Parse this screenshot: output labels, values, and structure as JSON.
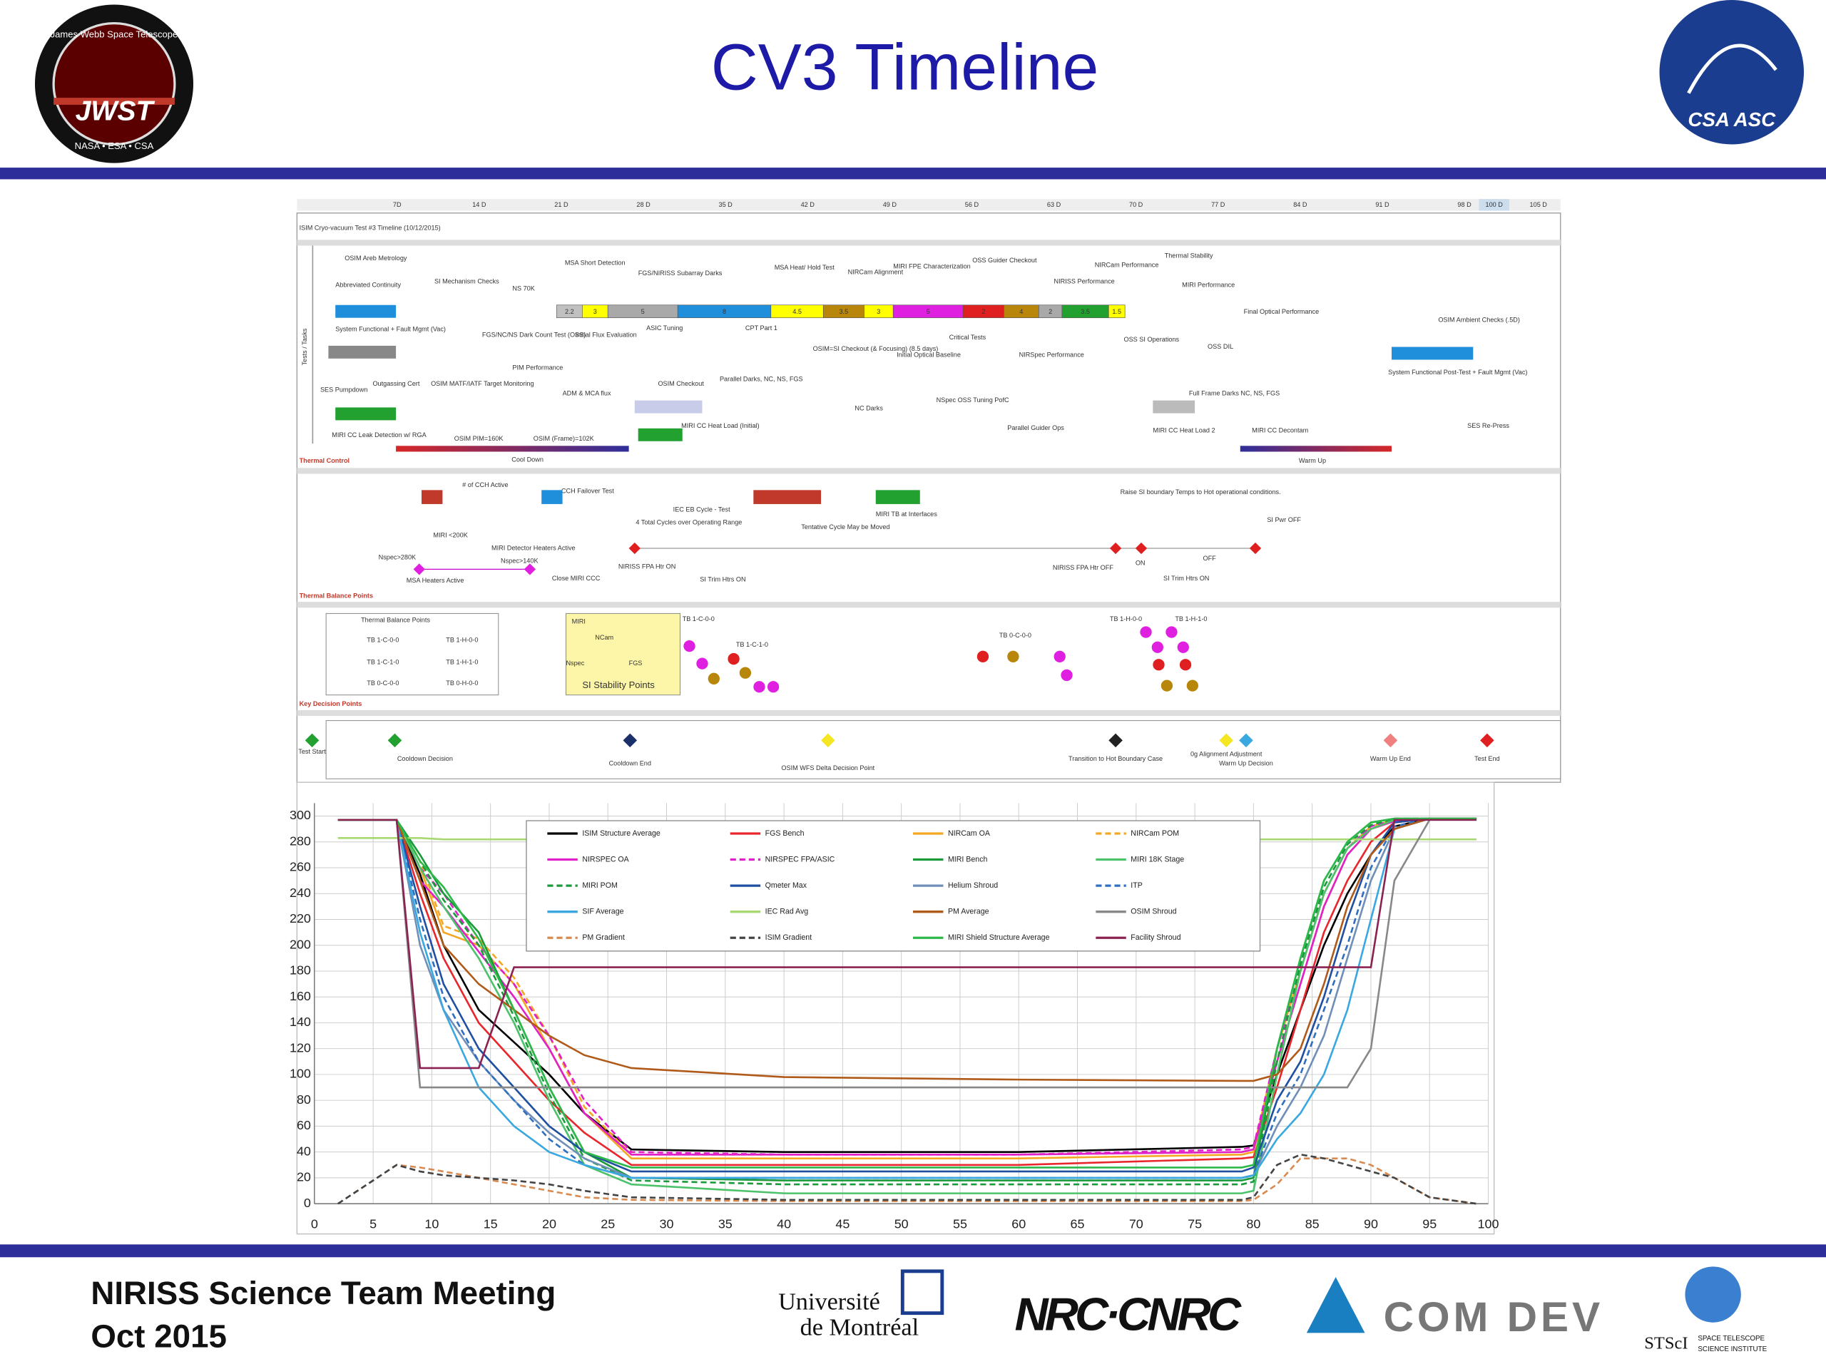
{
  "header": {
    "title": "CV3 Timeline",
    "jwst_logo": {
      "ring": "James Webb Space Telescope",
      "name": "JWST",
      "agencies": "NASA • ESA • CSA"
    },
    "csa_logo": "CSA ASC"
  },
  "timeline": {
    "title": "ISIM Cryo-vacuum Test #3 Timeline (10/12/2015)",
    "days": [
      "7D",
      "14 D",
      "21 D",
      "28 D",
      "35 D",
      "42 D",
      "49 D",
      "56 D",
      "63 D",
      "70 D",
      "77 D",
      "84 D",
      "91 D",
      "98 D",
      "100 D",
      "105 D"
    ],
    "sections": [
      "Tests / Tasks",
      "Thermal Control",
      "Thermal Balance Points",
      "Key Decision Points"
    ],
    "phases": [
      "Cool Down",
      "Warm Up"
    ],
    "bar": [
      {
        "label": "2.2",
        "color": "#c0c0c0"
      },
      {
        "label": "3",
        "color": "#ffff00"
      },
      {
        "label": "5",
        "color": "#a9a9a9"
      },
      {
        "label": "8",
        "color": "#1f8fdc"
      },
      {
        "label": "4.5",
        "color": "#ffff00"
      },
      {
        "label": "3.5",
        "color": "#b8860b"
      },
      {
        "label": "3",
        "color": "#ffff00"
      },
      {
        "label": "5",
        "color": "#e020e0"
      },
      {
        "label": "2",
        "color": "#e02020"
      },
      {
        "label": "4",
        "color": "#b8860b"
      },
      {
        "label": "2",
        "color": "#a9a9a9"
      },
      {
        "label": "3.5",
        "color": "#22a030"
      },
      {
        "label": "1.5",
        "color": "#ffff00"
      }
    ],
    "tasks": [
      "OSIM Areb Metrology",
      "Abbreviated Continuity",
      "SI Mechanism Checks",
      "NS 70K",
      "MSA Short Detection",
      "FGS/NIRISS Subarray Darks",
      "MSA Heat/ Hold Test",
      "NIRCam Alignment",
      "MIRI FPE Characterization",
      "OSS Guider Checkout",
      "NIRISS Performance",
      "NIRCam Performance",
      "Thermal Stability",
      "MIRI Performance",
      "Final Optical Performance",
      "System Functional + Fault Mgmt (Vac)",
      "FGS/NC/NS Dark Count Test (OSS)",
      "Initial Flux Evaluation",
      "ASIC Tuning",
      "CPT Part 1",
      "OSIM=SI Checkout (& Focusing) (8.5 days)",
      "Critical Tests",
      "Initial Optical Baseline",
      "NIRSpec Performance",
      "OSS SI Operations",
      "OSS DIL",
      "PIM Performance",
      "Parallel Darks, NC, NS, FGS",
      "OSIM Checkout",
      "ADM & MCA flux",
      "SES Pumpdown",
      "Outgassing Cert",
      "OSIM MATF/IATF Target Monitoring",
      "NC Darks",
      "NSpec OSS Tuning PofC",
      "Full Frame Darks NC, NS, FGS",
      "MIRI CC Leak Detection w/ RGA",
      "MIRI CC Heat Load (Initial)",
      "Parallel Guider Ops",
      "MIRI CC Heat Load 2",
      "MIRI CC Decontam",
      "OSIM Ambient Checks (.5D)",
      "System Functional Post-Test + Fault Mgmt (Vac)",
      "SES Re-Press",
      "OSIM PIM=160K",
      "OSIM (Frame)=102K"
    ],
    "thermal": [
      "# of CCH Active",
      "CCH Failover Test",
      "IEC EB Cycle - Test",
      "4 Total Cycles over Operating Range",
      "Tentative Cycle May be Moved",
      "MIRI TB at Interfaces",
      "Raise SI boundary Temps to Hot operational conditions.",
      "SI Pwr OFF",
      "MIRI <200K",
      "MIRI Detector Heaters Active",
      "Nspec>280K",
      "Nspec>140K",
      "MSA Heaters Active",
      "Close MIRI CCC",
      "NIRISS FPA Htr ON",
      "SI Trim Htrs ON",
      "NIRISS FPA Htr OFF",
      "ON",
      "OFF",
      "SI Trim Htrs ON"
    ],
    "balance": [
      "Thermal Balance Points",
      "TB 1-C-0-0",
      "TB 1-H-0-0",
      "TB 1-C-1-0",
      "TB 1-H-1-0",
      "TB 0-C-0-0",
      "TB 0-H-0-0",
      "SI Stability Points",
      "MIRI",
      "NCam",
      "Nspec",
      "FGS",
      "TB 1-C-0-0",
      "TB 1-C-1-0",
      "TB 0-C-0-0",
      "TB 1-H-0-0",
      "TB 1-H-1-0"
    ],
    "decisions": [
      "Test Start",
      "Cooldown Decision",
      "Cooldown End",
      "OSIM WFS Delta Decision Point",
      "Transition to Hot Boundary Case",
      "0g Alignment Adjustment",
      "Warm Up Decision",
      "Warm Up End",
      "Test End"
    ]
  },
  "chart_data": {
    "type": "line",
    "x": [
      2,
      7,
      9,
      11,
      14,
      17,
      20,
      23,
      27,
      40,
      60,
      79,
      80,
      82,
      84,
      86,
      88,
      90,
      92,
      95,
      99
    ],
    "xlim": [
      0,
      100
    ],
    "xticks": [
      0,
      5,
      10,
      15,
      20,
      25,
      30,
      35,
      40,
      45,
      50,
      55,
      60,
      65,
      70,
      75,
      80,
      85,
      90,
      95,
      100
    ],
    "ylim": [
      0,
      310
    ],
    "yticks": [
      0,
      20,
      40,
      60,
      80,
      100,
      120,
      140,
      160,
      180,
      200,
      220,
      240,
      260,
      280,
      300
    ],
    "grid": true,
    "series": [
      {
        "name": "ISIM Structure Average",
        "color": "#000000",
        "dash": false,
        "values": [
          297,
          297,
          255,
          200,
          150,
          125,
          100,
          70,
          42,
          40,
          40,
          44,
          45,
          100,
          150,
          200,
          240,
          270,
          292,
          298,
          298
        ]
      },
      {
        "name": "FGS Bench",
        "color": "#e8262b",
        "dash": false,
        "values": [
          297,
          297,
          240,
          190,
          140,
          110,
          80,
          55,
          30,
          30,
          30,
          35,
          36,
          90,
          150,
          210,
          250,
          280,
          295,
          298,
          298
        ]
      },
      {
        "name": "NIRCam OA",
        "color": "#f5a623",
        "dash": false,
        "values": [
          297,
          297,
          260,
          210,
          200,
          170,
          120,
          70,
          35,
          35,
          35,
          38,
          40,
          110,
          170,
          230,
          270,
          290,
          296,
          298,
          298
        ]
      },
      {
        "name": "NIRCam POM",
        "color": "#f5a623",
        "dash": true,
        "values": [
          297,
          297,
          265,
          215,
          205,
          175,
          130,
          75,
          38,
          38,
          38,
          40,
          42,
          120,
          180,
          240,
          275,
          292,
          297,
          298,
          298
        ]
      },
      {
        "name": "NIRSPEC OA",
        "color": "#e020c8",
        "dash": false,
        "values": [
          297,
          297,
          250,
          230,
          195,
          160,
          120,
          70,
          38,
          38,
          38,
          40,
          42,
          110,
          170,
          230,
          270,
          290,
          296,
          298,
          298
        ]
      },
      {
        "name": "NIRSPEC FPA/ASIC",
        "color": "#e020c8",
        "dash": true,
        "values": [
          297,
          297,
          260,
          240,
          200,
          170,
          130,
          80,
          40,
          38,
          38,
          42,
          44,
          120,
          180,
          240,
          275,
          292,
          297,
          298,
          298
        ]
      },
      {
        "name": "MIRI Bench",
        "color": "#1a9a3a",
        "dash": false,
        "values": [
          297,
          297,
          270,
          240,
          210,
          150,
          90,
          40,
          20,
          18,
          18,
          18,
          20,
          120,
          190,
          250,
          280,
          295,
          298,
          298,
          298
        ]
      },
      {
        "name": "MIRI 18K Stage",
        "color": "#4cc26a",
        "dash": false,
        "values": [
          297,
          297,
          260,
          230,
          190,
          140,
          80,
          30,
          15,
          8,
          8,
          8,
          10,
          100,
          180,
          240,
          275,
          290,
          297,
          298,
          298
        ]
      },
      {
        "name": "MIRI POM",
        "color": "#1a9a3a",
        "dash": true,
        "values": [
          297,
          297,
          265,
          235,
          200,
          145,
          85,
          35,
          18,
          15,
          15,
          15,
          17,
          110,
          185,
          245,
          278,
          293,
          298,
          298,
          298
        ]
      },
      {
        "name": "Qmeter Max",
        "color": "#1f4fa0",
        "dash": false,
        "values": [
          297,
          297,
          230,
          170,
          120,
          90,
          60,
          40,
          25,
          25,
          25,
          25,
          28,
          80,
          110,
          160,
          220,
          270,
          295,
          298,
          298
        ]
      },
      {
        "name": "Helium Shroud",
        "color": "#6f8fb8",
        "dash": false,
        "values": [
          297,
          297,
          200,
          150,
          110,
          80,
          55,
          35,
          20,
          20,
          20,
          20,
          22,
          60,
          90,
          130,
          190,
          250,
          290,
          298,
          298
        ]
      },
      {
        "name": "ITP",
        "color": "#2f6fc0",
        "dash": true,
        "values": [
          297,
          297,
          220,
          160,
          110,
          80,
          50,
          30,
          20,
          20,
          20,
          20,
          22,
          70,
          100,
          150,
          200,
          260,
          292,
          298,
          298
        ]
      },
      {
        "name": "SIF Average",
        "color": "#3aa8e0",
        "dash": false,
        "values": [
          297,
          297,
          210,
          150,
          90,
          60,
          40,
          30,
          20,
          20,
          20,
          20,
          22,
          50,
          70,
          100,
          150,
          220,
          290,
          298,
          298
        ]
      },
      {
        "name": "IEC Rad Avg",
        "color": "#a8d870",
        "dash": false,
        "values": [
          283,
          283,
          283,
          282,
          282,
          282,
          282,
          282,
          282,
          282,
          282,
          282,
          282,
          282,
          282,
          282,
          282,
          282,
          282,
          282,
          282
        ]
      },
      {
        "name": "PM Average",
        "color": "#b05a1a",
        "dash": false,
        "values": [
          297,
          297,
          250,
          200,
          170,
          150,
          130,
          115,
          105,
          98,
          96,
          95,
          95,
          100,
          120,
          170,
          230,
          270,
          290,
          298,
          298
        ]
      },
      {
        "name": "OSIM Shroud",
        "color": "#888888",
        "dash": false,
        "values": [
          297,
          297,
          90,
          90,
          90,
          90,
          90,
          90,
          90,
          90,
          90,
          90,
          90,
          90,
          90,
          90,
          90,
          120,
          250,
          297,
          297
        ]
      },
      {
        "name": "PM Gradient",
        "color": "#d88a50",
        "dash": true,
        "values": [
          0,
          30,
          28,
          25,
          20,
          15,
          10,
          5,
          3,
          2,
          2,
          2,
          3,
          15,
          35,
          35,
          35,
          30,
          20,
          5,
          0
        ]
      },
      {
        "name": "ISIM Gradient",
        "color": "#444444",
        "dash": true,
        "values": [
          0,
          30,
          25,
          22,
          20,
          18,
          15,
          10,
          5,
          3,
          3,
          3,
          5,
          30,
          38,
          35,
          30,
          25,
          20,
          5,
          0
        ]
      },
      {
        "name": "MIRI Shield Structure Average",
        "color": "#2db84a",
        "dash": false,
        "values": [
          297,
          297,
          265,
          245,
          205,
          150,
          90,
          40,
          28,
          28,
          28,
          28,
          30,
          120,
          190,
          250,
          280,
          295,
          298,
          298,
          298
        ]
      },
      {
        "name": "Facility Shroud",
        "color": "#8b2252",
        "dash": false,
        "values": [
          297,
          297,
          105,
          105,
          105,
          183,
          183,
          183,
          183,
          183,
          183,
          183,
          183,
          183,
          183,
          183,
          183,
          183,
          297,
          297,
          297
        ]
      }
    ]
  },
  "footer": {
    "meeting": "NIRISS Science Team Meeting",
    "date": "Oct 2015",
    "logos": [
      "Université",
      "de Montréal",
      "NRC·CNRC",
      "COM DEV",
      "STScI",
      "SPACE TELESCOPE",
      "SCIENCE INSTITUTE"
    ]
  }
}
